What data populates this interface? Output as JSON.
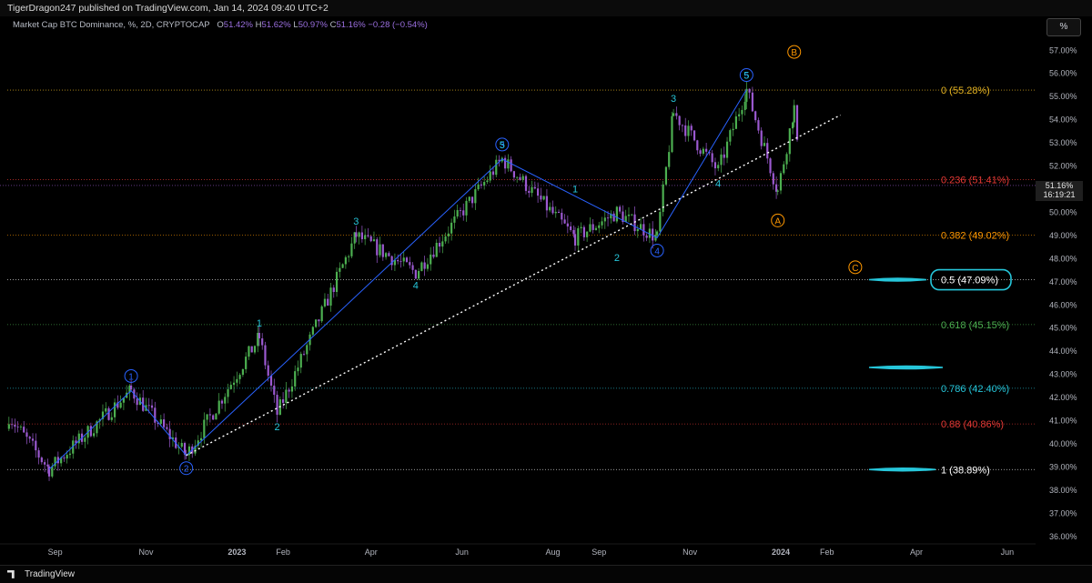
{
  "header": {
    "published": "TigerDragon247 published on TradingView.com, Jan 14, 2024 09:40 UTC+2",
    "symbol": "Market Cap BTC Dominance, %, 2D, CRYPTOCAP",
    "ohlc": {
      "o_label": "O",
      "o": "51.42%",
      "h_label": "H",
      "h": "51.62%",
      "l_label": "L",
      "l": "50.97%",
      "c_label": "C",
      "c": "51.16%",
      "change": "−0.28 (−0.54%)"
    },
    "scale_button": "%"
  },
  "footer": {
    "brand": "TradingView"
  },
  "price_tag": {
    "value": "51.16%",
    "timer": "16:19:21"
  },
  "colors": {
    "bg": "#000000",
    "up": "#4caf50",
    "down": "#9b59d0",
    "wave": "#2962ff",
    "wave_label": "#26c6da",
    "corrective": "#ff9800",
    "trend": "#ffffff",
    "highlight": "#26c6da"
  },
  "chart_data": {
    "type": "candlestick",
    "x_ticks": [
      "Sep",
      "Nov",
      "2023",
      "Feb",
      "Apr",
      "Jun",
      "Aug",
      "Sep",
      "Nov",
      "2024",
      "Feb",
      "Apr",
      "Jun"
    ],
    "y_ticks": [
      "57.00%",
      "56.00%",
      "55.00%",
      "54.00%",
      "53.00%",
      "52.00%",
      "51.00%",
      "50.00%",
      "49.00%",
      "48.00%",
      "47.00%",
      "46.00%",
      "45.00%",
      "44.00%",
      "43.00%",
      "42.00%",
      "41.00%",
      "40.00%",
      "39.00%",
      "38.00%",
      "37.00%",
      "36.00%"
    ],
    "ylim": [
      35.6,
      57.6
    ],
    "fib_levels": [
      {
        "ratio": "0",
        "label": "0 (55.28%)",
        "value": 55.28,
        "color": "#e6b422"
      },
      {
        "ratio": "0.236",
        "label": "0.236 (51.41%)",
        "value": 51.41,
        "color": "#e53935"
      },
      {
        "ratio": "0.382",
        "label": "0.382 (49.02%)",
        "value": 49.02,
        "color": "#ff9800"
      },
      {
        "ratio": "0.5",
        "label": "0.5 (47.09%)",
        "value": 47.09,
        "color": "#ffffff"
      },
      {
        "ratio": "0.618",
        "label": "0.618 (45.15%)",
        "value": 45.15,
        "color": "#4caf50"
      },
      {
        "ratio": "0.786",
        "label": "0.786 (42.40%)",
        "value": 42.4,
        "color": "#26c6da"
      },
      {
        "ratio": "0.88",
        "label": "0.88 (40.86%)",
        "value": 40.86,
        "color": "#e53935"
      },
      {
        "ratio": "1",
        "label": "1 (38.89%)",
        "value": 38.89,
        "color": "#ffffff"
      }
    ],
    "key_points": [
      {
        "date": "2022-08-01",
        "price": 41.2
      },
      {
        "date": "2022-08-28",
        "price": 38.9
      },
      {
        "date": "2022-10-22",
        "price": 42.3
      },
      {
        "date": "2022-11-28",
        "price": 39.5
      },
      {
        "date": "2023-01-16",
        "price": 44.6
      },
      {
        "date": "2023-01-28",
        "price": 41.3
      },
      {
        "date": "2023-03-22",
        "price": 49.0
      },
      {
        "date": "2023-05-01",
        "price": 47.4
      },
      {
        "date": "2023-06-28",
        "price": 52.3
      },
      {
        "date": "2023-08-16",
        "price": 48.9
      },
      {
        "date": "2023-09-13",
        "price": 50.0
      },
      {
        "date": "2023-10-10",
        "price": 48.9
      },
      {
        "date": "2023-10-21",
        "price": 54.3
      },
      {
        "date": "2023-11-20",
        "price": 51.8
      },
      {
        "date": "2023-12-09",
        "price": 55.3
      },
      {
        "date": "2023-12-30",
        "price": 50.9
      },
      {
        "date": "2024-01-10",
        "price": 54.5
      },
      {
        "date": "2024-01-14",
        "price": 51.16
      }
    ],
    "waves": [
      {
        "label": "1",
        "date": "2022-10-22",
        "price": 42.3,
        "style": "circled",
        "color": "#2962ff"
      },
      {
        "label": "2",
        "date": "2022-11-28",
        "price": 39.5,
        "style": "circled",
        "color": "#2962ff"
      },
      {
        "label": "3",
        "date": "2023-06-28",
        "price": 52.3,
        "style": "circled",
        "color": "#2962ff"
      },
      {
        "label": "4",
        "date": "2023-10-10",
        "price": 48.9,
        "style": "circled",
        "color": "#2962ff"
      },
      {
        "label": "5",
        "date": "2023-12-09",
        "price": 55.3,
        "style": "circled",
        "color": "#2962ff"
      },
      {
        "label": "1",
        "date": "2023-01-16",
        "price": 44.6,
        "style": "plain",
        "color": "#26c6da"
      },
      {
        "label": "2",
        "date": "2023-01-28",
        "price": 41.3,
        "style": "plain",
        "color": "#26c6da"
      },
      {
        "label": "3",
        "date": "2023-03-22",
        "price": 49.0,
        "style": "plain",
        "color": "#26c6da"
      },
      {
        "label": "4",
        "date": "2023-05-01",
        "price": 47.4,
        "style": "plain",
        "color": "#26c6da"
      },
      {
        "label": "5",
        "date": "2023-06-28",
        "price": 52.3,
        "style": "plain",
        "color": "#26c6da"
      },
      {
        "label": "1",
        "date": "2023-08-16",
        "price": 50.4,
        "style": "plain",
        "color": "#26c6da"
      },
      {
        "label": "2",
        "date": "2023-09-13",
        "price": 48.6,
        "style": "plain",
        "color": "#26c6da"
      },
      {
        "label": "3",
        "date": "2023-10-21",
        "price": 54.3,
        "style": "plain",
        "color": "#26c6da"
      },
      {
        "label": "4",
        "date": "2023-11-20",
        "price": 51.8,
        "style": "plain",
        "color": "#26c6da"
      },
      {
        "label": "5",
        "date": "2023-12-09",
        "price": 55.3,
        "style": "plain",
        "color": "#26c6da"
      },
      {
        "label": "A",
        "date": "2023-12-30",
        "price": 50.2,
        "style": "circled",
        "color": "#ff9800"
      },
      {
        "label": "B",
        "date": "2024-01-10",
        "price": 56.3,
        "style": "circled",
        "color": "#ff9800"
      },
      {
        "label": "C",
        "date": "2024-02-20",
        "price": 47.0,
        "style": "circled",
        "color": "#ff9800"
      }
    ],
    "trendline": {
      "style": "dotted",
      "color": "#ffffff",
      "from": {
        "date": "2022-11-28",
        "price": 39.5
      },
      "to": {
        "date": "2024-02-10",
        "price": 54.2
      }
    },
    "current_price": 51.16
  }
}
